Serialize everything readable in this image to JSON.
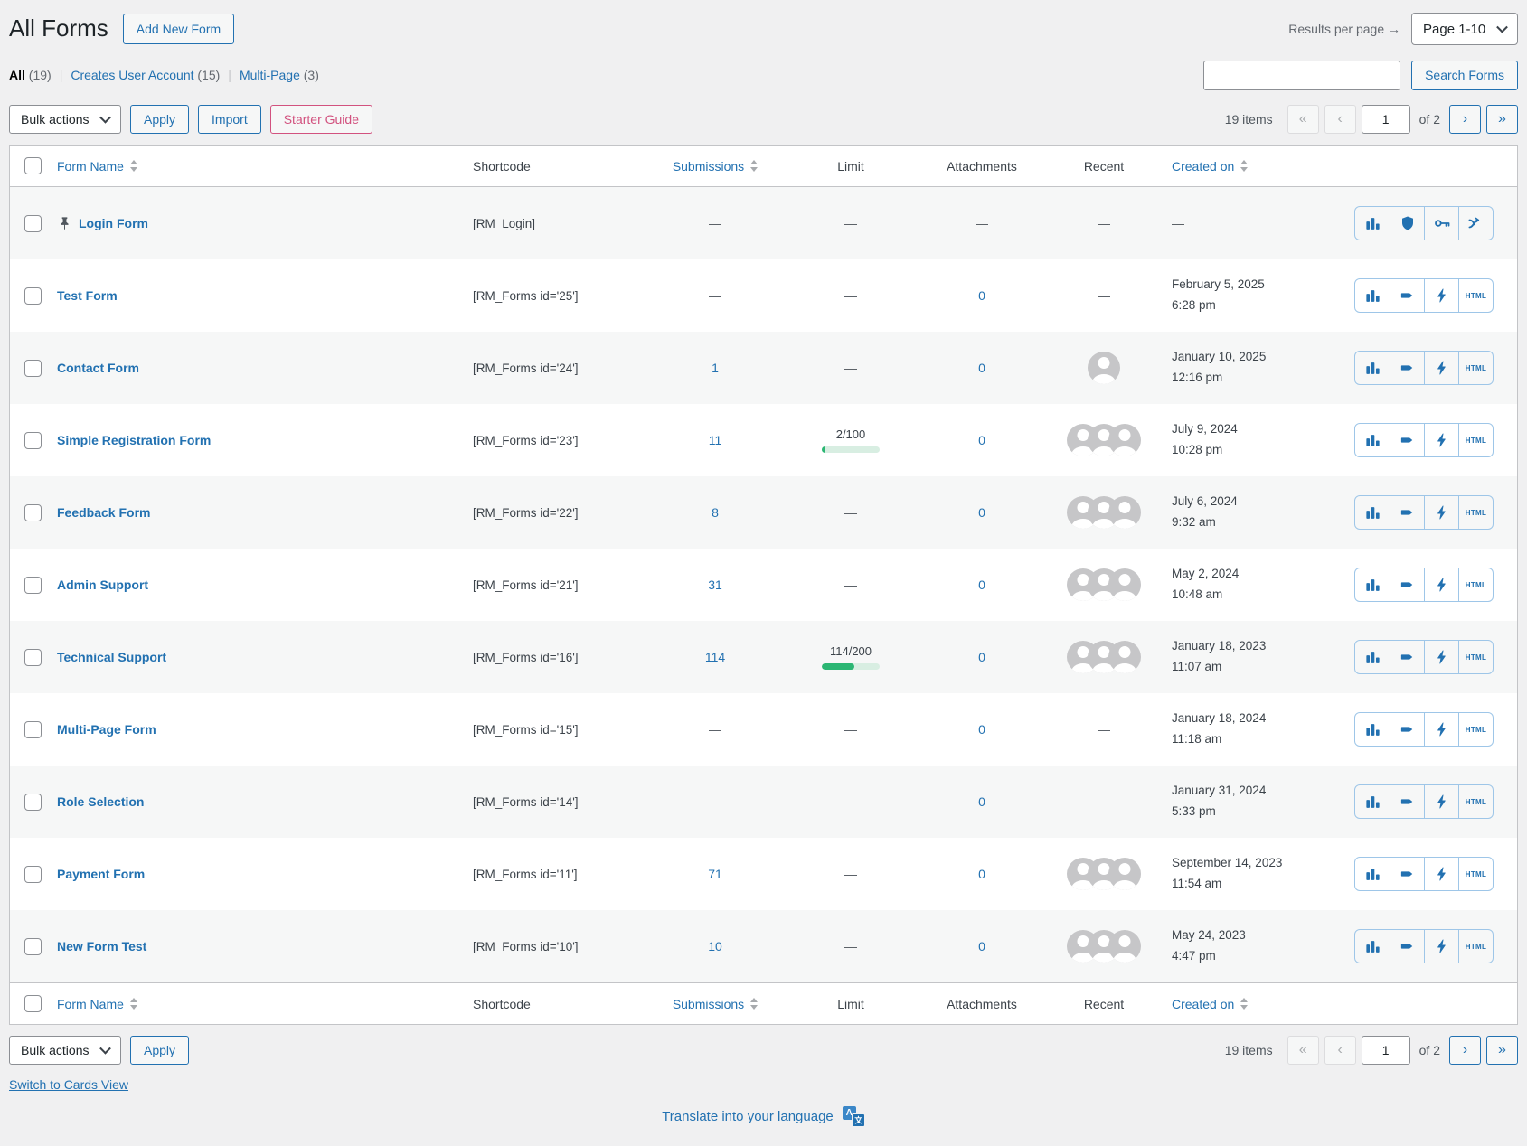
{
  "header": {
    "title": "All Forms",
    "add_new_button": "Add New Form",
    "results_per_page_label": "Results per page →",
    "page_select": "Page 1-10"
  },
  "filters": {
    "separator": "|",
    "items": [
      {
        "label": "All",
        "count": "(19)",
        "active": true
      },
      {
        "label": "Creates User Account",
        "count": "(15)",
        "active": false
      },
      {
        "label": "Multi-Page",
        "count": "(3)",
        "active": false
      }
    ],
    "search_value": "",
    "search_button": "Search Forms"
  },
  "toolbar": {
    "bulk_actions": "Bulk actions",
    "apply": "Apply",
    "import": "Import",
    "starter_guide": "Starter Guide"
  },
  "pagination": {
    "items_label": "19 items",
    "first": "«",
    "prev": "‹",
    "current_page": "1",
    "total_label": "of 2",
    "next": "›",
    "last": "»"
  },
  "table": {
    "empty_marker": "—",
    "icon_labels": {
      "html": "HTML"
    },
    "headers": {
      "form_name": "Form Name",
      "shortcode": "Shortcode",
      "submissions": "Submissions",
      "limit": "Limit",
      "attachments": "Attachments",
      "recent": "Recent",
      "created_on": "Created on"
    },
    "rows": [
      {
        "name": "Login Form",
        "pinned": true,
        "shortcode": "[RM_Login]",
        "submissions": "—",
        "limit": null,
        "attachments": "—",
        "avatars": 0,
        "created": null,
        "icons": [
          "analytics",
          "shield",
          "key",
          "workflow"
        ]
      },
      {
        "name": "Test Form",
        "pinned": false,
        "shortcode": "[RM_Forms id='25']",
        "submissions": "—",
        "limit": null,
        "attachments": "0",
        "avatars": 0,
        "created": {
          "date": "February 5, 2025",
          "time": "6:28 pm"
        },
        "icons": [
          "analytics",
          "tag",
          "automation",
          "html"
        ]
      },
      {
        "name": "Contact Form",
        "pinned": false,
        "shortcode": "[RM_Forms id='24']",
        "submissions": "1",
        "limit": null,
        "attachments": "0",
        "avatars": 1,
        "created": {
          "date": "January 10, 2025",
          "time": "12:16 pm"
        },
        "icons": [
          "analytics",
          "tag",
          "automation",
          "html"
        ]
      },
      {
        "name": "Simple Registration Form",
        "pinned": false,
        "shortcode": "[RM_Forms id='23']",
        "submissions": "11",
        "limit": {
          "text": "2/100",
          "percent": 2
        },
        "attachments": "0",
        "avatars": 3,
        "created": {
          "date": "July 9, 2024",
          "time": "10:28 pm"
        },
        "icons": [
          "analytics",
          "tag",
          "automation",
          "html"
        ]
      },
      {
        "name": "Feedback Form",
        "pinned": false,
        "shortcode": "[RM_Forms id='22']",
        "submissions": "8",
        "limit": null,
        "attachments": "0",
        "avatars": 3,
        "created": {
          "date": "July 6, 2024",
          "time": "9:32 am"
        },
        "icons": [
          "analytics",
          "tag",
          "automation",
          "html"
        ]
      },
      {
        "name": "Admin Support",
        "pinned": false,
        "shortcode": "[RM_Forms id='21']",
        "submissions": "31",
        "limit": null,
        "attachments": "0",
        "avatars": 3,
        "created": {
          "date": "May 2, 2024",
          "time": "10:48 am"
        },
        "icons": [
          "analytics",
          "tag",
          "automation",
          "html"
        ]
      },
      {
        "name": "Technical Support",
        "pinned": false,
        "shortcode": "[RM_Forms id='16']",
        "submissions": "114",
        "limit": {
          "text": "114/200",
          "percent": 57
        },
        "attachments": "0",
        "avatars": 3,
        "created": {
          "date": "January 18, 2023",
          "time": "11:07 am"
        },
        "icons": [
          "analytics",
          "tag",
          "automation",
          "html"
        ]
      },
      {
        "name": "Multi-Page Form",
        "pinned": false,
        "shortcode": "[RM_Forms id='15']",
        "submissions": "—",
        "limit": null,
        "attachments": "0",
        "avatars": 0,
        "created": {
          "date": "January 18, 2024",
          "time": "11:18 am"
        },
        "icons": [
          "analytics",
          "tag",
          "automation",
          "html"
        ]
      },
      {
        "name": "Role Selection",
        "pinned": false,
        "shortcode": "[RM_Forms id='14']",
        "submissions": "—",
        "limit": null,
        "attachments": "0",
        "avatars": 0,
        "created": {
          "date": "January 31, 2024",
          "time": "5:33 pm"
        },
        "icons": [
          "analytics",
          "tag",
          "automation",
          "html"
        ]
      },
      {
        "name": "Payment Form",
        "pinned": false,
        "shortcode": "[RM_Forms id='11']",
        "submissions": "71",
        "limit": null,
        "attachments": "0",
        "avatars": 3,
        "created": {
          "date": "September 14, 2023",
          "time": "11:54 am"
        },
        "icons": [
          "analytics",
          "tag",
          "automation",
          "html"
        ]
      },
      {
        "name": "New Form Test",
        "pinned": false,
        "shortcode": "[RM_Forms id='10']",
        "submissions": "10",
        "limit": null,
        "attachments": "0",
        "avatars": 3,
        "created": {
          "date": "May 24, 2023",
          "time": "4:47 pm"
        },
        "icons": [
          "analytics",
          "tag",
          "automation",
          "html"
        ]
      }
    ]
  },
  "footer": {
    "switch_view": "Switch to Cards View",
    "translate": "Translate into your language",
    "translate_icon_letter": "A"
  },
  "colors": {
    "accent_blue": "#2271b1",
    "starter_guide_pink": "#d2527f",
    "progress_green": "#2bb673",
    "page_background": "#f0f0f1",
    "row_stripe": "#f6f7f7"
  }
}
